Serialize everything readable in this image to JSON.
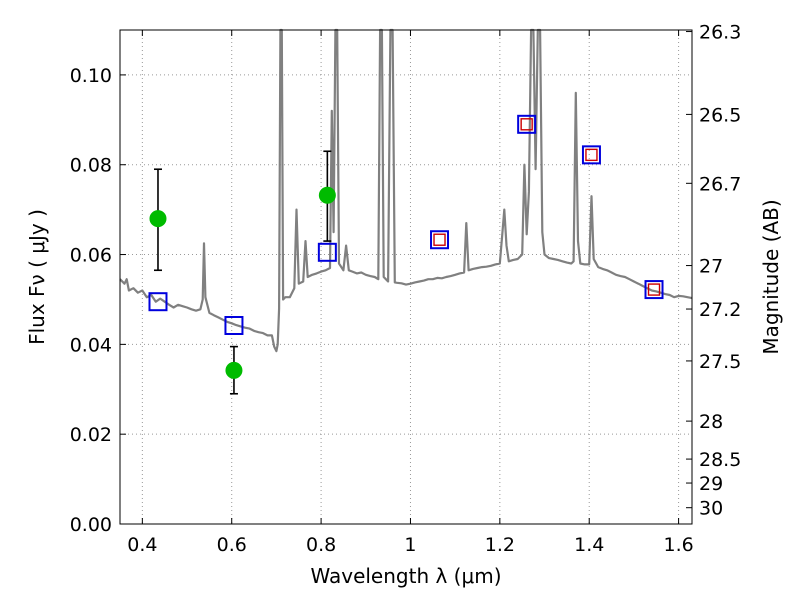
{
  "chart_data": {
    "type": "line",
    "xlabel": "Wavelength  λ (μm)",
    "ylabel": "Flux  Fν  ( μJy )",
    "y2label": "Magnitude (AB)",
    "xlim": [
      0.35,
      1.63
    ],
    "ylim": [
      0.0,
      0.11
    ],
    "grid": true,
    "x_ticks": [
      {
        "v": 0.4,
        "label": "0.4"
      },
      {
        "v": 0.6,
        "label": "0.6"
      },
      {
        "v": 0.8,
        "label": "0.8"
      },
      {
        "v": 1.0,
        "label": "1"
      },
      {
        "v": 1.2,
        "label": "1.2"
      },
      {
        "v": 1.4,
        "label": "1.4"
      },
      {
        "v": 1.6,
        "label": "1.6"
      }
    ],
    "y_ticks": [
      {
        "v": 0.0,
        "label": "0.00"
      },
      {
        "v": 0.02,
        "label": "0.02"
      },
      {
        "v": 0.04,
        "label": "0.04"
      },
      {
        "v": 0.06,
        "label": "0.06"
      },
      {
        "v": 0.08,
        "label": "0.08"
      },
      {
        "v": 0.1,
        "label": "0.10"
      }
    ],
    "mag_ticks": [
      {
        "v": 26.3,
        "label": "26.3"
      },
      {
        "v": 26.5,
        "label": "26.5"
      },
      {
        "v": 26.7,
        "label": "26.7"
      },
      {
        "v": 27.0,
        "label": "27"
      },
      {
        "v": 27.2,
        "label": "27.2"
      },
      {
        "v": 27.5,
        "label": "27.5"
      },
      {
        "v": 28.0,
        "label": "28"
      },
      {
        "v": 28.5,
        "label": "28.5"
      },
      {
        "v": 29.0,
        "label": "29"
      },
      {
        "v": 30.0,
        "label": "30"
      }
    ],
    "colors": {
      "spectrum": "#808080",
      "observed": "#00bb00",
      "errorbar": "#000000",
      "model_outer": "#0000dd",
      "model_inner": "#cc0000",
      "grid": "#999999"
    },
    "series": [
      {
        "kind": "spectrum",
        "points": [
          [
            0.35,
            0.0545
          ],
          [
            0.36,
            0.0535
          ],
          [
            0.365,
            0.0545
          ],
          [
            0.37,
            0.052
          ],
          [
            0.38,
            0.0525
          ],
          [
            0.39,
            0.0515
          ],
          [
            0.4,
            0.052
          ],
          [
            0.41,
            0.0505
          ],
          [
            0.42,
            0.051
          ],
          [
            0.43,
            0.0495
          ],
          [
            0.44,
            0.0502
          ],
          [
            0.45,
            0.0495
          ],
          [
            0.46,
            0.0488
          ],
          [
            0.47,
            0.0482
          ],
          [
            0.48,
            0.0488
          ],
          [
            0.49,
            0.0485
          ],
          [
            0.5,
            0.0482
          ],
          [
            0.51,
            0.0478
          ],
          [
            0.52,
            0.0475
          ],
          [
            0.53,
            0.0478
          ],
          [
            0.535,
            0.05
          ],
          [
            0.538,
            0.0625
          ],
          [
            0.541,
            0.0505
          ],
          [
            0.55,
            0.047
          ],
          [
            0.56,
            0.0465
          ],
          [
            0.57,
            0.046
          ],
          [
            0.58,
            0.0455
          ],
          [
            0.59,
            0.045
          ],
          [
            0.6,
            0.0447
          ],
          [
            0.61,
            0.0443
          ],
          [
            0.62,
            0.044
          ],
          [
            0.63,
            0.0437
          ],
          [
            0.64,
            0.0435
          ],
          [
            0.65,
            0.043
          ],
          [
            0.66,
            0.0427
          ],
          [
            0.67,
            0.0425
          ],
          [
            0.68,
            0.042
          ],
          [
            0.69,
            0.042
          ],
          [
            0.695,
            0.0395
          ],
          [
            0.7,
            0.0385
          ],
          [
            0.703,
            0.04
          ],
          [
            0.706,
            0.048
          ],
          [
            0.709,
            0.11
          ],
          [
            0.712,
            0.11
          ],
          [
            0.715,
            0.05
          ],
          [
            0.72,
            0.0505
          ],
          [
            0.73,
            0.0505
          ],
          [
            0.74,
            0.0525
          ],
          [
            0.745,
            0.07
          ],
          [
            0.75,
            0.0535
          ],
          [
            0.76,
            0.054
          ],
          [
            0.765,
            0.063
          ],
          [
            0.77,
            0.055
          ],
          [
            0.78,
            0.0555
          ],
          [
            0.79,
            0.0558
          ],
          [
            0.8,
            0.0562
          ],
          [
            0.81,
            0.0565
          ],
          [
            0.82,
            0.057
          ],
          [
            0.824,
            0.092
          ],
          [
            0.828,
            0.065
          ],
          [
            0.832,
            0.11
          ],
          [
            0.836,
            0.11
          ],
          [
            0.84,
            0.058
          ],
          [
            0.85,
            0.0565
          ],
          [
            0.856,
            0.062
          ],
          [
            0.862,
            0.0565
          ],
          [
            0.87,
            0.0562
          ],
          [
            0.88,
            0.0558
          ],
          [
            0.89,
            0.056
          ],
          [
            0.9,
            0.0555
          ],
          [
            0.91,
            0.0552
          ],
          [
            0.92,
            0.055
          ],
          [
            0.928,
            0.0545
          ],
          [
            0.932,
            0.11
          ],
          [
            0.936,
            0.11
          ],
          [
            0.94,
            0.055
          ],
          [
            0.945,
            0.0545
          ],
          [
            0.95,
            0.054
          ],
          [
            0.955,
            0.11
          ],
          [
            0.96,
            0.11
          ],
          [
            0.965,
            0.0538
          ],
          [
            0.97,
            0.0537
          ],
          [
            0.98,
            0.0536
          ],
          [
            0.99,
            0.0533
          ],
          [
            1.0,
            0.0535
          ],
          [
            1.01,
            0.0538
          ],
          [
            1.02,
            0.054
          ],
          [
            1.03,
            0.0542
          ],
          [
            1.04,
            0.0545
          ],
          [
            1.05,
            0.0545
          ],
          [
            1.06,
            0.0548
          ],
          [
            1.07,
            0.0547
          ],
          [
            1.08,
            0.055
          ],
          [
            1.09,
            0.0552
          ],
          [
            1.1,
            0.0555
          ],
          [
            1.11,
            0.0558
          ],
          [
            1.12,
            0.056
          ],
          [
            1.125,
            0.067
          ],
          [
            1.13,
            0.0565
          ],
          [
            1.14,
            0.0568
          ],
          [
            1.15,
            0.057
          ],
          [
            1.16,
            0.0572
          ],
          [
            1.17,
            0.0573
          ],
          [
            1.18,
            0.0575
          ],
          [
            1.19,
            0.0578
          ],
          [
            1.2,
            0.058
          ],
          [
            1.205,
            0.064
          ],
          [
            1.21,
            0.07
          ],
          [
            1.215,
            0.062
          ],
          [
            1.22,
            0.0585
          ],
          [
            1.23,
            0.0588
          ],
          [
            1.24,
            0.059
          ],
          [
            1.25,
            0.06
          ],
          [
            1.255,
            0.08
          ],
          [
            1.26,
            0.0645
          ],
          [
            1.265,
            0.074
          ],
          [
            1.27,
            0.11
          ],
          [
            1.275,
            0.11
          ],
          [
            1.28,
            0.079
          ],
          [
            1.285,
            0.11
          ],
          [
            1.29,
            0.11
          ],
          [
            1.295,
            0.065
          ],
          [
            1.3,
            0.06
          ],
          [
            1.31,
            0.0592
          ],
          [
            1.32,
            0.059
          ],
          [
            1.33,
            0.0588
          ],
          [
            1.34,
            0.0585
          ],
          [
            1.35,
            0.0582
          ],
          [
            1.36,
            0.058
          ],
          [
            1.365,
            0.0585
          ],
          [
            1.37,
            0.096
          ],
          [
            1.375,
            0.063
          ],
          [
            1.38,
            0.058
          ],
          [
            1.39,
            0.0578
          ],
          [
            1.4,
            0.0578
          ],
          [
            1.405,
            0.073
          ],
          [
            1.41,
            0.059
          ],
          [
            1.42,
            0.0572
          ],
          [
            1.43,
            0.0568
          ],
          [
            1.44,
            0.0565
          ],
          [
            1.45,
            0.056
          ],
          [
            1.46,
            0.0555
          ],
          [
            1.47,
            0.0552
          ],
          [
            1.48,
            0.055
          ],
          [
            1.49,
            0.0545
          ],
          [
            1.5,
            0.054
          ],
          [
            1.51,
            0.0535
          ],
          [
            1.52,
            0.053
          ],
          [
            1.53,
            0.0525
          ],
          [
            1.54,
            0.052
          ],
          [
            1.55,
            0.0518
          ],
          [
            1.56,
            0.0515
          ],
          [
            1.57,
            0.0512
          ],
          [
            1.58,
            0.051
          ],
          [
            1.59,
            0.0505
          ],
          [
            1.6,
            0.0508
          ],
          [
            1.61,
            0.0507
          ],
          [
            1.62,
            0.0505
          ],
          [
            1.63,
            0.0503
          ]
        ]
      },
      {
        "kind": "observed",
        "points": [
          {
            "x": 0.435,
            "y": 0.068,
            "yerr_lo": 0.0565,
            "yerr_hi": 0.079
          },
          {
            "x": 0.605,
            "y": 0.0342,
            "yerr_lo": 0.029,
            "yerr_hi": 0.0395
          },
          {
            "x": 0.814,
            "y": 0.0732,
            "yerr_lo": 0.063,
            "yerr_hi": 0.083
          }
        ]
      },
      {
        "kind": "model_box",
        "points": [
          {
            "x": 0.435,
            "y": 0.0495,
            "inner": false
          },
          {
            "x": 0.605,
            "y": 0.0442,
            "inner": false
          },
          {
            "x": 0.814,
            "y": 0.0605,
            "inner": false
          },
          {
            "x": 1.065,
            "y": 0.0633,
            "inner": true
          },
          {
            "x": 1.26,
            "y": 0.089,
            "inner": true
          },
          {
            "x": 1.405,
            "y": 0.0822,
            "inner": true
          },
          {
            "x": 1.545,
            "y": 0.0522,
            "inner": true
          }
        ]
      }
    ]
  }
}
